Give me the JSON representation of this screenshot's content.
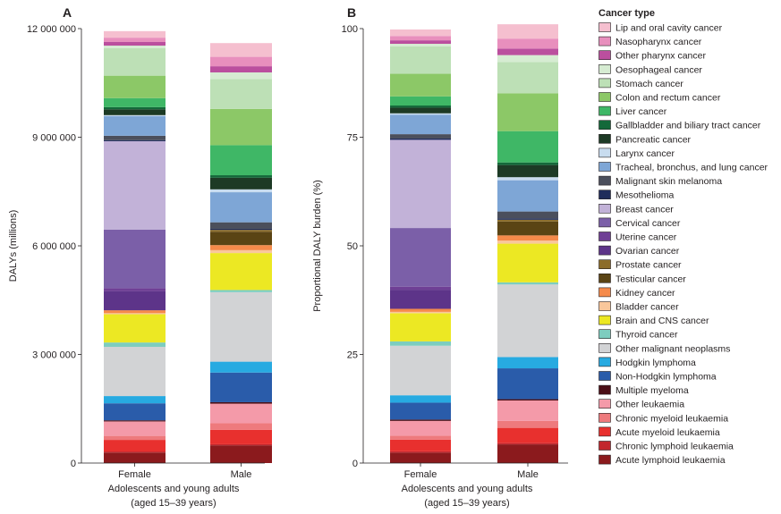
{
  "chart_data": {
    "type": "bar",
    "stacked": true,
    "legend": {
      "title": "Cancer type",
      "placement": "right",
      "order": [
        "Lip and oral cavity cancer",
        "Nasopharynx cancer",
        "Other pharynx cancer",
        "Oesophageal cancer",
        "Stomach cancer",
        "Colon and rectum cancer",
        "Liver cancer",
        "Gallbladder and biliary tract cancer",
        "Pancreatic cancer",
        "Larynx cancer",
        "Tracheal, bronchus, and lung cancer",
        "Malignant skin melanoma",
        "Mesothelioma",
        "Breast cancer",
        "Cervical cancer",
        "Uterine cancer",
        "Ovarian cancer",
        "Prostate cancer",
        "Testicular cancer",
        "Kidney cancer",
        "Bladder cancer",
        "Brain and CNS cancer",
        "Thyroid cancer",
        "Other malignant neoplasms",
        "Hodgkin lymphoma",
        "Non-Hodgkin lymphoma",
        "Multiple myeloma",
        "Other leukaemia",
        "Chronic myeloid leukaemia",
        "Acute myeloid leukaemia",
        "Chronic lymphoid leukaemia",
        "Acute lymphoid leukaemia"
      ]
    },
    "colors": {
      "Lip and oral cavity cancer": "#f5bfcf",
      "Nasopharynx cancer": "#e88fbd",
      "Other pharynx cancer": "#bb4f9e",
      "Oesophageal cancer": "#d6ecd2",
      "Stomach cancer": "#bde0b6",
      "Colon and rectum cancer": "#8cc867",
      "Liver cancer": "#3fb766",
      "Gallbladder and biliary tract cancer": "#14693a",
      "Pancreatic cancer": "#1d3a25",
      "Larynx cancer": "#c8dcef",
      "Tracheal, bronchus, and lung cancer": "#7ea6d6",
      "Malignant skin melanoma": "#4b4f5c",
      "Mesothelioma": "#1f2c5b",
      "Breast cancer": "#c2b2d8",
      "Cervical cancer": "#7b5fa8",
      "Uterine cancer": "#6f3f95",
      "Ovarian cancer": "#5d3489",
      "Prostate cancer": "#8c6d29",
      "Testicular cancer": "#5a4414",
      "Kidney cancer": "#f58a4a",
      "Bladder cancer": "#f9c79b",
      "Brain and CNS cancer": "#ece823",
      "Thyroid cancer": "#7dcdbf",
      "Other malignant neoplasms": "#d2d3d5",
      "Hodgkin lymphoma": "#27aae1",
      "Non-Hodgkin lymphoma": "#2a5caa",
      "Multiple myeloma": "#4b0e16",
      "Other leukaemia": "#f49aa9",
      "Chronic myeloid leukaemia": "#ee7a7d",
      "Acute myeloid leukaemia": "#e8302e",
      "Chronic lymphoid leukaemia": "#c2272d",
      "Acute lymphoid leukaemia": "#8b1a1d"
    },
    "categories": [
      "Female",
      "Male"
    ],
    "panels": [
      {
        "letter": "A",
        "ylabel": "DALYs (millions)",
        "xlabel_line1": "Adolescents and young adults",
        "xlabel_line2": "(aged 15–39 years)",
        "ylim": [
          0,
          12000000
        ],
        "ticks": [
          0,
          3000000,
          6000000,
          9000000,
          12000000
        ],
        "tick_labels": [
          "0",
          "3 000 000",
          "6 000 000",
          "9 000 000",
          "12 000 000"
        ],
        "series": [
          {
            "name": "Acute lymphoid leukaemia",
            "values": [
              290000,
              490000
            ]
          },
          {
            "name": "Chronic lymphoid leukaemia",
            "values": [
              30000,
              30000
            ]
          },
          {
            "name": "Acute myeloid leukaemia",
            "values": [
              320000,
              400000
            ]
          },
          {
            "name": "Chronic myeloid leukaemia",
            "values": [
              110000,
              180000
            ]
          },
          {
            "name": "Other leukaemia",
            "values": [
              400000,
              540000
            ]
          },
          {
            "name": "Multiple myeloma",
            "values": [
              30000,
              40000
            ]
          },
          {
            "name": "Non-Hodgkin lymphoma",
            "values": [
              470000,
              820000
            ]
          },
          {
            "name": "Hodgkin lymphoma",
            "values": [
              200000,
              300000
            ]
          },
          {
            "name": "Other malignant neoplasms",
            "values": [
              1360000,
              1920000
            ]
          },
          {
            "name": "Thyroid cancer",
            "values": [
              120000,
              60000
            ]
          },
          {
            "name": "Brain and CNS cancer",
            "values": [
              780000,
              1020000
            ]
          },
          {
            "name": "Bladder cancer",
            "values": [
              30000,
              80000
            ]
          },
          {
            "name": "Kidney cancer",
            "values": [
              80000,
              140000
            ]
          },
          {
            "name": "Testicular cancer",
            "values": [
              0,
              370000
            ]
          },
          {
            "name": "Prostate cancer",
            "values": [
              0,
              50000
            ]
          },
          {
            "name": "Ovarian cancer",
            "values": [
              530000,
              0
            ]
          },
          {
            "name": "Uterine cancer",
            "values": [
              80000,
              0
            ]
          },
          {
            "name": "Cervical cancer",
            "values": [
              1620000,
              0
            ]
          },
          {
            "name": "Breast cancer",
            "values": [
              2440000,
              0
            ]
          },
          {
            "name": "Mesothelioma",
            "values": [
              30000,
              30000
            ]
          },
          {
            "name": "Malignant skin melanoma",
            "values": [
              120000,
              180000
            ]
          },
          {
            "name": "Tracheal, bronchus, and lung cancer",
            "values": [
              540000,
              830000
            ]
          },
          {
            "name": "Larynx cancer",
            "values": [
              30000,
              80000
            ]
          },
          {
            "name": "Pancreatic cancer",
            "values": [
              160000,
              320000
            ]
          },
          {
            "name": "Gallbladder and biliary tract cancer",
            "values": [
              60000,
              70000
            ]
          },
          {
            "name": "Liver cancer",
            "values": [
              250000,
              830000
            ]
          },
          {
            "name": "Colon and rectum cancer",
            "values": [
              620000,
              1000000
            ]
          },
          {
            "name": "Stomach cancer",
            "values": [
              760000,
              830000
            ]
          },
          {
            "name": "Oesophageal cancer",
            "values": [
              70000,
              180000
            ]
          },
          {
            "name": "Other pharynx cancer",
            "values": [
              100000,
              170000
            ]
          },
          {
            "name": "Nasopharynx cancer",
            "values": [
              120000,
              260000
            ]
          },
          {
            "name": "Lip and oral cavity cancer",
            "values": [
              180000,
              380000
            ]
          }
        ]
      },
      {
        "letter": "B",
        "ylabel": "Proportional DALY burden (%)",
        "xlabel_line1": "Adolescents and young adults",
        "xlabel_line2": "(aged 15–39 years)",
        "ylim": [
          0,
          100
        ],
        "ticks": [
          0,
          25,
          50,
          75,
          100
        ],
        "tick_labels": [
          "0",
          "25",
          "50",
          "75",
          "100"
        ],
        "series": [
          {
            "name": "Acute lymphoid leukaemia",
            "values": [
              2.4,
              4.3
            ]
          },
          {
            "name": "Chronic lymphoid leukaemia",
            "values": [
              0.3,
              0.3
            ]
          },
          {
            "name": "Acute myeloid leukaemia",
            "values": [
              2.7,
              3.5
            ]
          },
          {
            "name": "Chronic myeloid leukaemia",
            "values": [
              0.9,
              1.6
            ]
          },
          {
            "name": "Other leukaemia",
            "values": [
              3.4,
              4.7
            ]
          },
          {
            "name": "Multiple myeloma",
            "values": [
              0.3,
              0.3
            ]
          },
          {
            "name": "Non-Hodgkin lymphoma",
            "values": [
              3.9,
              7.1
            ]
          },
          {
            "name": "Hodgkin lymphoma",
            "values": [
              1.7,
              2.6
            ]
          },
          {
            "name": "Other malignant neoplasms",
            "values": [
              11.4,
              16.7
            ]
          },
          {
            "name": "Thyroid cancer",
            "values": [
              1.0,
              0.5
            ]
          },
          {
            "name": "Brain and CNS cancer",
            "values": [
              6.5,
              8.9
            ]
          },
          {
            "name": "Bladder cancer",
            "values": [
              0.3,
              0.7
            ]
          },
          {
            "name": "Kidney cancer",
            "values": [
              0.7,
              1.2
            ]
          },
          {
            "name": "Testicular cancer",
            "values": [
              0,
              3.2
            ]
          },
          {
            "name": "Prostate cancer",
            "values": [
              0,
              0.4
            ]
          },
          {
            "name": "Ovarian cancer",
            "values": [
              4.4,
              0
            ]
          },
          {
            "name": "Uterine cancer",
            "values": [
              0.7,
              0
            ]
          },
          {
            "name": "Cervical cancer",
            "values": [
              13.5,
              0
            ]
          },
          {
            "name": "Breast cancer",
            "values": [
              20.3,
              0
            ]
          },
          {
            "name": "Mesothelioma",
            "values": [
              0.3,
              0.3
            ]
          },
          {
            "name": "Malignant skin melanoma",
            "values": [
              1.0,
              1.6
            ]
          },
          {
            "name": "Tracheal, bronchus, and lung cancer",
            "values": [
              4.5,
              7.2
            ]
          },
          {
            "name": "Larynx cancer",
            "values": [
              0.3,
              0.7
            ]
          },
          {
            "name": "Pancreatic cancer",
            "values": [
              1.3,
              2.8
            ]
          },
          {
            "name": "Gallbladder and biliary tract cancer",
            "values": [
              0.5,
              0.6
            ]
          },
          {
            "name": "Liver cancer",
            "values": [
              2.1,
              7.2
            ]
          },
          {
            "name": "Colon and rectum cancer",
            "values": [
              5.2,
              8.7
            ]
          },
          {
            "name": "Stomach cancer",
            "values": [
              6.3,
              7.2
            ]
          },
          {
            "name": "Oesophageal cancer",
            "values": [
              0.6,
              1.6
            ]
          },
          {
            "name": "Other pharynx cancer",
            "values": [
              0.8,
              1.5
            ]
          },
          {
            "name": "Nasopharynx cancer",
            "values": [
              1.0,
              2.3
            ]
          },
          {
            "name": "Lip and oral cavity cancer",
            "values": [
              1.5,
              3.3
            ]
          }
        ]
      }
    ]
  }
}
